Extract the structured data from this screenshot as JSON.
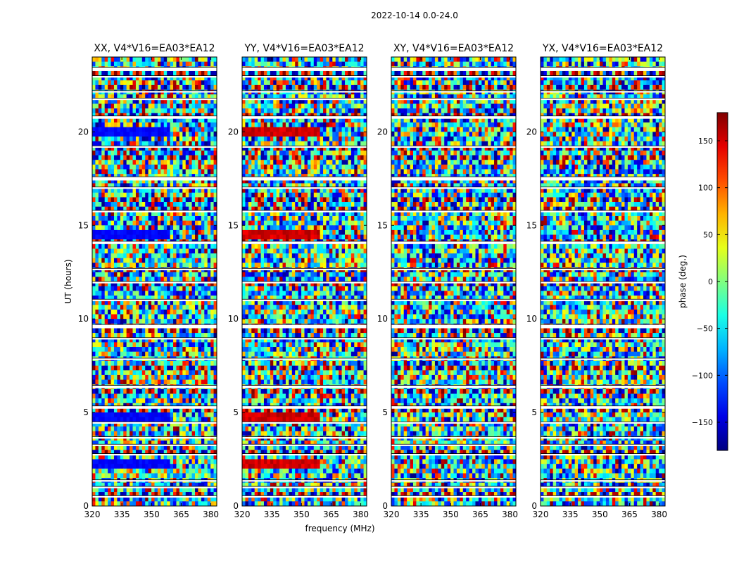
{
  "suptitle": "2022-10-14 0.0-24.0",
  "chart_data": [
    {
      "type": "heatmap",
      "title": "XX, V4*V16=EA03*EA12",
      "xlabel": "",
      "ylabel": "UT (hours)",
      "xlim": [
        320,
        383
      ],
      "ylim": [
        0,
        24
      ],
      "xticks": [
        "320",
        "335",
        "350",
        "365",
        "380"
      ],
      "yticks": [
        "0",
        "5",
        "10",
        "15",
        "20"
      ]
    },
    {
      "type": "heatmap",
      "title": "YY, V4*V16=EA03*EA12",
      "xlabel": "frequency (MHz)",
      "ylabel": "",
      "xlim": [
        320,
        383
      ],
      "ylim": [
        0,
        24
      ],
      "xticks": [
        "320",
        "335",
        "350",
        "365",
        "380"
      ],
      "yticks": [
        "0",
        "5",
        "10",
        "15",
        "20"
      ]
    },
    {
      "type": "heatmap",
      "title": "XY, V4*V16=EA03*EA12",
      "xlabel": "",
      "ylabel": "",
      "xlim": [
        320,
        383
      ],
      "ylim": [
        0,
        24
      ],
      "xticks": [
        "320",
        "335",
        "350",
        "365",
        "380"
      ],
      "yticks": [
        "0",
        "5",
        "10",
        "15",
        "20"
      ]
    },
    {
      "type": "heatmap",
      "title": "YX, V4*V16=EA03*EA12",
      "xlabel": "",
      "ylabel": "",
      "xlim": [
        320,
        383
      ],
      "ylim": [
        0,
        24
      ],
      "xticks": [
        "320",
        "335",
        "350",
        "365",
        "380"
      ],
      "yticks": [
        "0",
        "5",
        "10",
        "15",
        "20"
      ]
    }
  ],
  "colorbar": {
    "label": "phase (deg.)",
    "range": [
      -180,
      180
    ],
    "ticks": [
      "150",
      "100",
      "50",
      "0",
      "−50",
      "−100",
      "−150"
    ],
    "colormap": "jet"
  },
  "flagged_time_bands_hours": [
    [
      23.25,
      23.45
    ],
    [
      22.9,
      23.0
    ],
    [
      22.1,
      22.2
    ],
    [
      21.7,
      21.8
    ],
    [
      20.7,
      20.85
    ],
    [
      19.15,
      19.25
    ],
    [
      17.4,
      17.6
    ],
    [
      16.95,
      17.05
    ],
    [
      15.7,
      15.8
    ],
    [
      14.0,
      14.15
    ],
    [
      12.6,
      12.7
    ],
    [
      11.9,
      12.0
    ],
    [
      10.95,
      11.05
    ],
    [
      9.5,
      9.7
    ],
    [
      8.9,
      9.0
    ],
    [
      7.8,
      7.9
    ],
    [
      6.3,
      6.45
    ],
    [
      5.2,
      5.35
    ],
    [
      4.4,
      4.5
    ],
    [
      3.6,
      3.7
    ],
    [
      3.2,
      3.3
    ],
    [
      2.7,
      2.8
    ],
    [
      1.3,
      1.4
    ],
    [
      0.95,
      1.05
    ],
    [
      0.45,
      0.55
    ]
  ]
}
